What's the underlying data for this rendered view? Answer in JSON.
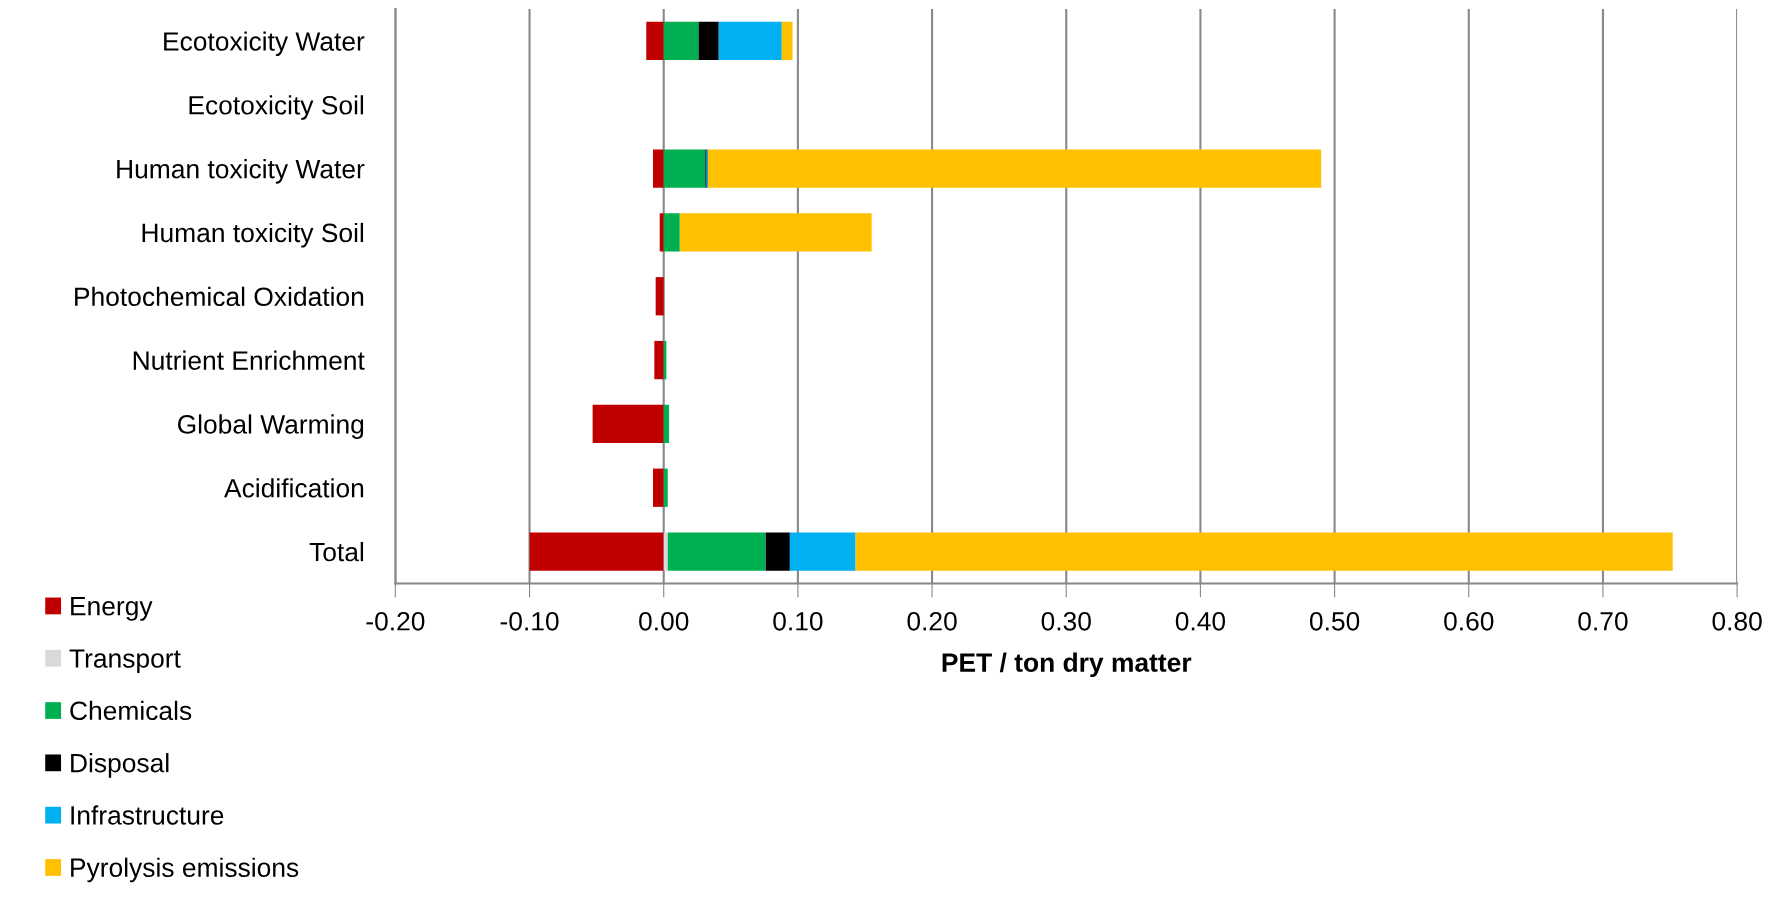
{
  "chart_data": {
    "type": "bar",
    "orientation": "horizontal",
    "stacked": true,
    "categories": [
      "Ecotoxicity Water",
      "Ecotoxicity Soil",
      "Human toxicity Water",
      "Human toxicity Soil",
      "Photochemical Oxidation",
      "Nutrient Enrichment",
      "Global Warming",
      "Acidification",
      "Total"
    ],
    "series": [
      {
        "name": "Energy",
        "color": "#c00000",
        "values": [
          -0.013,
          0,
          -0.008,
          -0.003,
          -0.006,
          -0.007,
          -0.053,
          -0.008,
          -0.1
        ]
      },
      {
        "name": "Transport",
        "color": "#d9d9d9",
        "values": [
          null,
          0,
          0,
          0,
          0,
          0,
          0,
          0,
          0.003
        ]
      },
      {
        "name": "Chemicals",
        "color": "#00b050",
        "values": [
          0.026,
          0,
          0.031,
          0.012,
          0,
          0.002,
          0.004,
          0.003,
          0.073
        ]
      },
      {
        "name": "Disposal",
        "color": "#000000",
        "values": [
          0.015,
          0,
          0.001,
          0,
          0,
          0,
          0,
          0,
          0.018
        ]
      },
      {
        "name": "Infrastructure",
        "color": "#00b0f0",
        "values": [
          0.047,
          0,
          0.001,
          0,
          0,
          0,
          0,
          0,
          0.049
        ]
      },
      {
        "name": "Pyrolysis emissions",
        "color": "#ffc000",
        "values": [
          0.008,
          0,
          0.457,
          0.143,
          0,
          0,
          0,
          0,
          0.609
        ]
      }
    ],
    "xlabel": "PET / ton dry matter",
    "xlim": [
      -0.2,
      0.8
    ],
    "xticks": [
      {
        "value": -0.2,
        "label": "-0.20"
      },
      {
        "value": -0.1,
        "label": "-0.10"
      },
      {
        "value": 0,
        "label": "0.00"
      },
      {
        "value": 0.1,
        "label": "0.10"
      },
      {
        "value": 0.2,
        "label": "0.20"
      },
      {
        "value": 0.3,
        "label": "0.30"
      },
      {
        "value": 0.4,
        "label": "0.40"
      },
      {
        "value": 0.5,
        "label": "0.50"
      },
      {
        "value": 0.6,
        "label": "0.60"
      },
      {
        "value": 0.7,
        "label": "0.70"
      },
      {
        "value": 0.8,
        "label": "0.80"
      }
    ],
    "grid": "x",
    "legend": "bottom left"
  }
}
